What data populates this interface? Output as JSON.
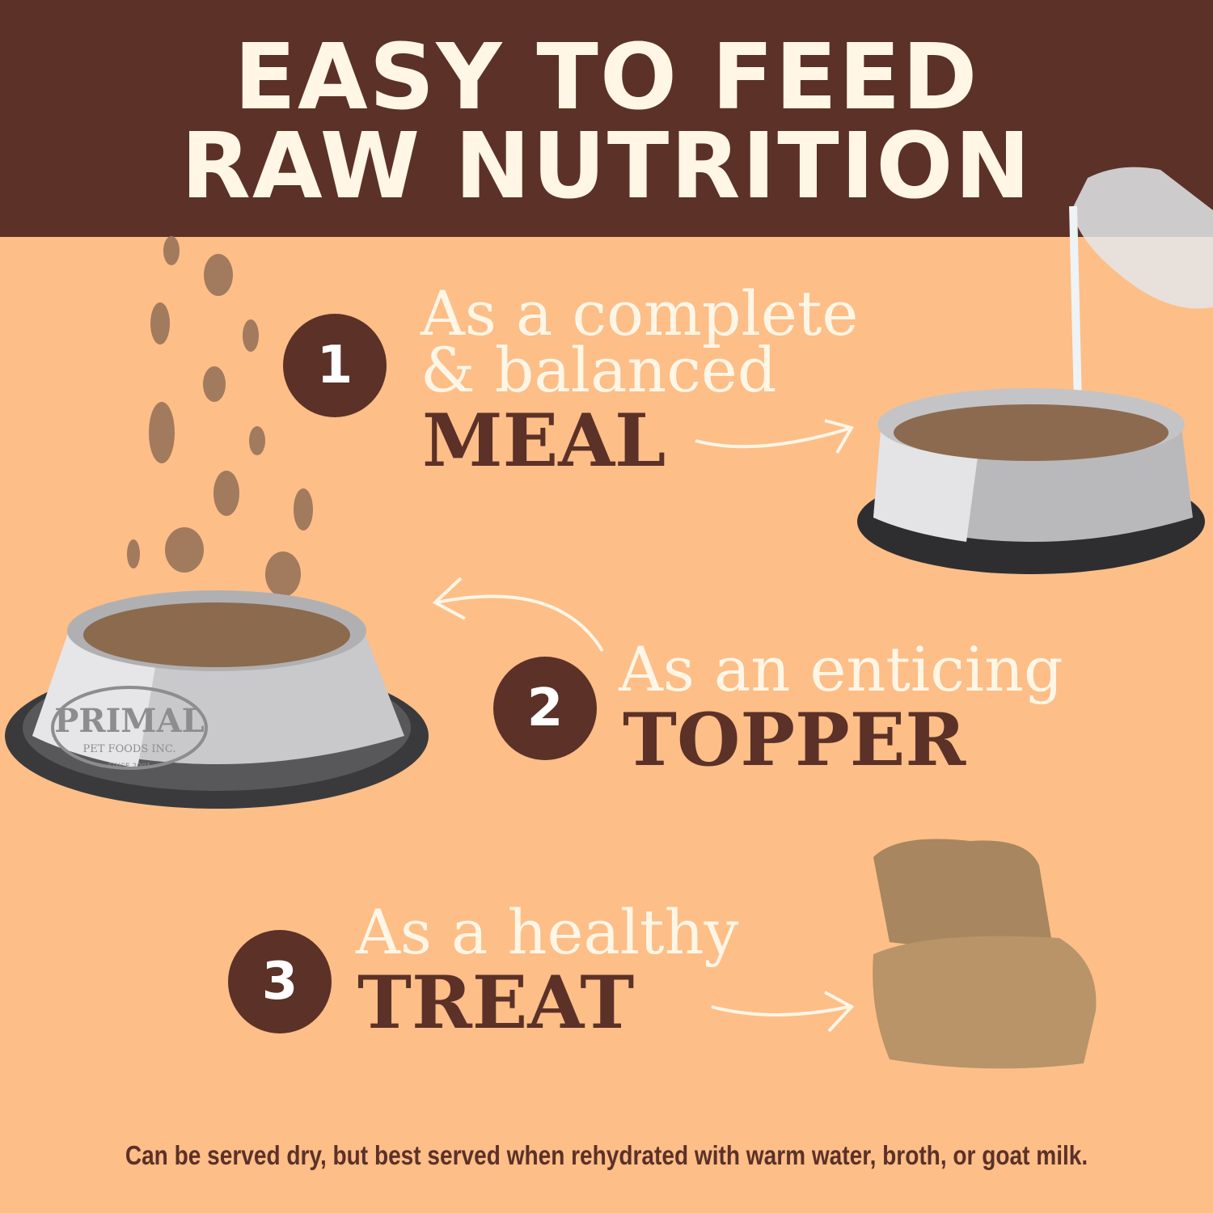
{
  "header": {
    "line1": "EASY TO FEED",
    "line2": "RAW NUTRITION"
  },
  "options": [
    {
      "number": "1",
      "line1": "As a complete",
      "line2": "& balanced",
      "emphasis": "MEAL"
    },
    {
      "number": "2",
      "line1": "As an enticing",
      "emphasis": "TOPPER"
    },
    {
      "number": "3",
      "line1": "As a healthy",
      "emphasis": "TREAT"
    }
  ],
  "bowl_logo": {
    "brand": "PRIMAL",
    "sub": "PET FOODS INC.",
    "since": "SINCE 2001"
  },
  "footer": "Can be served dry, but best served when rehydrated with warm water, broth, or goat milk.",
  "colors": {
    "header_bg": "#5b3128",
    "page_bg": "#fdbe88",
    "light_text": "#fff6e6",
    "dark_text": "#5b3128"
  }
}
